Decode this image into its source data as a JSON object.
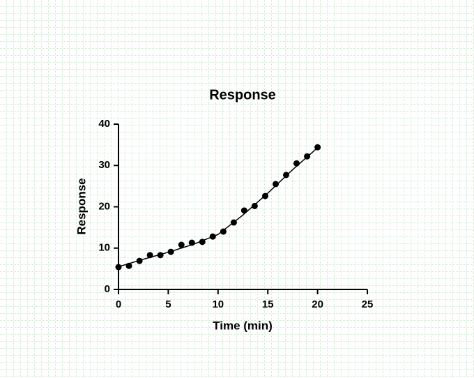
{
  "chart_data": {
    "type": "scatter",
    "title": "Response",
    "x_label": "Time (min)",
    "y_label": "Response",
    "xlim": [
      0,
      25
    ],
    "xticks": [
      0,
      5,
      10,
      15,
      20,
      25
    ],
    "ylim": [
      0,
      40
    ],
    "yticks": [
      0,
      10,
      20,
      30,
      40
    ],
    "series": [
      {
        "color": "#000000",
        "marker": "circle",
        "x": [
          0,
          1.05,
          2.11,
          3.16,
          4.21,
          5.26,
          6.32,
          7.37,
          8.42,
          9.47,
          10.53,
          11.58,
          12.63,
          13.68,
          14.74,
          15.79,
          16.84,
          17.89,
          18.95,
          20
        ],
        "values": [
          5.4,
          5.7,
          6.9,
          8.3,
          8.3,
          9.1,
          10.8,
          11.3,
          11.5,
          12.8,
          14.0,
          16.2,
          19.1,
          20.2,
          22.6,
          25.5,
          27.7,
          30.5,
          32.2,
          34.4
        ]
      },
      {
        "color": "#000000",
        "line": true,
        "x": [
          0,
          2.5,
          5,
          7.5,
          10,
          12.5,
          15,
          17.5,
          20
        ],
        "values": [
          5.5,
          7.3,
          9.0,
          10.9,
          13.3,
          18.0,
          23.3,
          29.0,
          34.3
        ]
      }
    ]
  }
}
